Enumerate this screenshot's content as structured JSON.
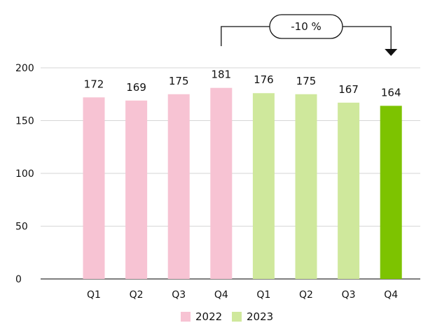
{
  "chart_data": {
    "type": "bar",
    "categories": [
      "Q1",
      "Q2",
      "Q3",
      "Q4",
      "Q1",
      "Q2",
      "Q3",
      "Q4"
    ],
    "values": [
      172,
      169,
      175,
      181,
      176,
      175,
      167,
      164
    ],
    "groups": [
      "2022",
      "2022",
      "2022",
      "2022",
      "2023",
      "2023",
      "2023",
      "2023"
    ],
    "ylim": [
      0,
      200
    ],
    "yticks": [
      0,
      50,
      100,
      150,
      200
    ],
    "grid": true,
    "legend": [
      "2022",
      "2023"
    ],
    "legend_position": "bottom",
    "annotation": {
      "text": "-10 %",
      "from_category_index": 3,
      "to_category_index": 7
    },
    "colors": {
      "2022": "#f7c3d3",
      "2023": "#cfe89c",
      "highlight": "#7dc300",
      "grid": "#d6d6d6",
      "text": "#111111"
    },
    "highlight_index": 7
  }
}
